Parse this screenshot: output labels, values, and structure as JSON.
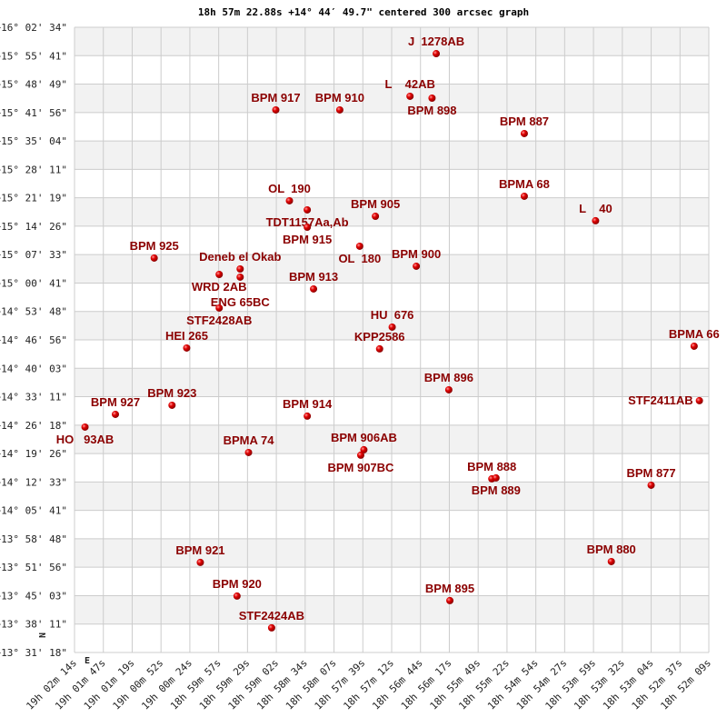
{
  "chart_data": {
    "type": "scatter",
    "title": "18h 57m 22.88s +14° 44′ 49.7\" centered 300 arcsec graph",
    "grid": true,
    "compass": {
      "north": "N",
      "east": "E"
    },
    "x_axis": {
      "quantity": "Right Ascension",
      "direction": "decreasing to the right",
      "ticks": [
        "19h 02m 14s",
        "19h 01m 47s",
        "19h 01m 19s",
        "19h 00m 52s",
        "19h 00m 24s",
        "18h 59m 57s",
        "18h 59m 29s",
        "18h 59m 02s",
        "18h 58m 34s",
        "18h 58m 07s",
        "18h 57m 39s",
        "18h 57m 12s",
        "18h 56m 44s",
        "18h 56m 17s",
        "18h 55m 49s",
        "18h 55m 22s",
        "18h 54m 54s",
        "18h 54m 27s",
        "18h 53m 59s",
        "18h 53m 32s",
        "18h 53m 04s",
        "18h 52m 37s",
        "18h 52m 09s"
      ]
    },
    "y_axis": {
      "quantity": "Declination",
      "ticks": [
        "+16° 02' 34\"",
        "+15° 55' 41\"",
        "+15° 48' 49\"",
        "+15° 41' 56\"",
        "+15° 35' 04\"",
        "+15° 28' 11\"",
        "+15° 21' 19\"",
        "+15° 14' 26\"",
        "+15° 07' 33\"",
        "+15° 00' 41\"",
        "+14° 53' 48\"",
        "+14° 46' 56\"",
        "+14° 40' 03\"",
        "+14° 33' 11\"",
        "+14° 26' 18\"",
        "+14° 19' 26\"",
        "+14° 12' 33\"",
        "+14° 05' 41\"",
        "+13° 58' 48\"",
        "+13° 51' 56\"",
        "+13° 45' 03\"",
        "+13° 38' 11\"",
        "+13° 31' 18\""
      ]
    },
    "colors": {
      "star": "#dd0000",
      "label": "#8b0000",
      "band": "#f2f2f2",
      "grid": "#cccccc"
    },
    "points": [
      {
        "name": "J  1278AB",
        "ra": "18h 56m 29s",
        "dec": "+15° 56' 11\""
      },
      {
        "name": "L    42AB",
        "ra": "18h 56m 54s",
        "dec": "+15° 45' 52\""
      },
      {
        "name": "BPM 898",
        "ra": "18h 56m 33s",
        "dec": "+15° 45' 25\""
      },
      {
        "name": "BPM 917",
        "ra": "18h 59m 02s",
        "dec": "+15° 42' 34\""
      },
      {
        "name": "BPM 910",
        "ra": "18h 58m 01s",
        "dec": "+15° 42' 34\""
      },
      {
        "name": "BPM 887",
        "ra": "18h 55m 05s",
        "dec": "+15° 36' 51\""
      },
      {
        "name": "BPMA 68",
        "ra": "18h 55m 05s",
        "dec": "+15° 21' 41\""
      },
      {
        "name": "L    40",
        "ra": "18h 53m 57s",
        "dec": "+15° 15' 45\""
      },
      {
        "name": "OL  190",
        "ra": "18h 58m 49s",
        "dec": "+15° 20' 35\""
      },
      {
        "name": "TDT1157Aa,Ab",
        "ra": "18h 58m 32s",
        "dec": "+15° 18' 23\""
      },
      {
        "name": "BPM 905",
        "ra": "18h 57m 27s",
        "dec": "+15° 16' 50\""
      },
      {
        "name": "BPM 915",
        "ra": "18h 58m 32s",
        "dec": "+15° 14' 12\""
      },
      {
        "name": "OL  180",
        "ra": "18h 57m 42s",
        "dec": "+15° 09' 35\""
      },
      {
        "name": "BPM 925",
        "ra": "19h 00m 58s",
        "dec": "+15° 06' 44\""
      },
      {
        "name": "BPM 900",
        "ra": "18h 56m 48s",
        "dec": "+15° 04' 45\""
      },
      {
        "name": "Deneb el Okab",
        "ra": "18h 59m 36s",
        "dec": "+15° 04' 05\""
      },
      {
        "name": "WRD 2AB",
        "ra": "18h 59m 56s",
        "dec": "+15° 02' 46\""
      },
      {
        "name": "ENG 65BC",
        "ra": "18h 59m 36s",
        "dec": "+15° 02' 07\""
      },
      {
        "name": "BPM 913",
        "ra": "18h 58m 26s",
        "dec": "+14° 59' 15\""
      },
      {
        "name": "STF2428AB",
        "ra": "18h 59m 56s",
        "dec": "+14° 54' 38\""
      },
      {
        "name": "HU  676",
        "ra": "18h 57m 11s",
        "dec": "+14° 50' 01\""
      },
      {
        "name": "KPP2586",
        "ra": "18h 57m 23s",
        "dec": "+14° 44' 45\""
      },
      {
        "name": "HEI 265",
        "ra": "19h 00m 27s",
        "dec": "+14° 44' 58\""
      },
      {
        "name": "BPMA 66",
        "ra": "18h 52m 23s",
        "dec": "+14° 45' 24\""
      },
      {
        "name": "BPM 896",
        "ra": "18h 56m 17s",
        "dec": "+14° 34' 51\""
      },
      {
        "name": "STF2411AB",
        "ra": "18h 52m 18s",
        "dec": "+14° 32' 13\""
      },
      {
        "name": "BPM 927",
        "ra": "19h 01m 35s",
        "dec": "+14° 28' 55\""
      },
      {
        "name": "HO   93AB",
        "ra": "19h 02m 04s",
        "dec": "+14° 25' 50\""
      },
      {
        "name": "BPM 923",
        "ra": "19h 00m 41s",
        "dec": "+14° 31' 07\""
      },
      {
        "name": "BPM 914",
        "ra": "18h 58m 32s",
        "dec": "+14° 28' 29\""
      },
      {
        "name": "BPMA 74",
        "ra": "18h 59m 28s",
        "dec": "+14° 19' 41\""
      },
      {
        "name": "BPM 906AB",
        "ra": "18h 57m 38s",
        "dec": "+14° 20' 21\""
      },
      {
        "name": "BPM 907BC",
        "ra": "18h 57m 41s",
        "dec": "+14° 19' 02\""
      },
      {
        "name": "BPM 888",
        "ra": "18h 55m 36s",
        "dec": "+14° 13' 19\""
      },
      {
        "name": "BPM 889",
        "ra": "18h 55m 32s",
        "dec": "+14° 13' 32\""
      },
      {
        "name": "BPM 877",
        "ra": "18h 53m 04s",
        "dec": "+14° 11' 46\""
      },
      {
        "name": "BPM 921",
        "ra": "19h 00m 14s",
        "dec": "+13° 53' 05\""
      },
      {
        "name": "BPM 880",
        "ra": "18h 53m 42s",
        "dec": "+13° 53' 18\""
      },
      {
        "name": "BPM 920",
        "ra": "18h 59m 39s",
        "dec": "+13° 44' 57\""
      },
      {
        "name": "BPM 895",
        "ra": "18h 56m 16s",
        "dec": "+13° 43' 51\""
      },
      {
        "name": "STF2424AB",
        "ra": "18h 59m 06s",
        "dec": "+13° 37' 16\""
      }
    ]
  }
}
